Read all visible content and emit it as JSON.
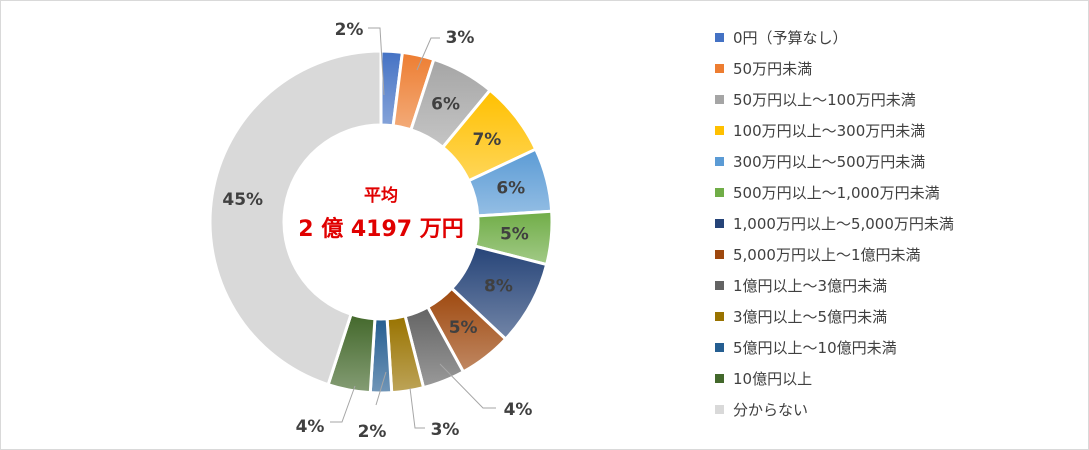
{
  "chart_data": {
    "type": "pie",
    "center_title": "平均",
    "center_value": "2 億 4197 万円",
    "legend_position": "right",
    "slices": [
      {
        "category": "0円（予算なし）",
        "value": 2,
        "label": "2%",
        "color": "#4472c4"
      },
      {
        "category": "50万円未満",
        "value": 3,
        "label": "3%",
        "color": "#ed7d31"
      },
      {
        "category": "50万円以上～100万円未満",
        "value": 6,
        "label": "6%",
        "color": "#a5a5a5"
      },
      {
        "category": "100万円以上～300万円未満",
        "value": 7,
        "label": "7%",
        "color": "#ffc000"
      },
      {
        "category": "300万円以上～500万円未満",
        "value": 6,
        "label": "6%",
        "color": "#5b9bd5"
      },
      {
        "category": "500万円以上～1,000万円未満",
        "value": 5,
        "label": "5%",
        "color": "#70ad47"
      },
      {
        "category": "1,000万円以上～5,000万円未満",
        "value": 8,
        "label": "8%",
        "color": "#264478"
      },
      {
        "category": "5,000万円以上～1億円未満",
        "value": 5,
        "label": "5%",
        "color": "#9e480e"
      },
      {
        "category": "1億円以上～3億円未満",
        "value": 4,
        "label": "4%",
        "color": "#636363"
      },
      {
        "category": "3億円以上～5億円未満",
        "value": 3,
        "label": "3%",
        "color": "#997300"
      },
      {
        "category": "5億円以上～10億円未満",
        "value": 2,
        "label": "2%",
        "color": "#255e91"
      },
      {
        "category": "10億円以上",
        "value": 4,
        "label": "4%",
        "color": "#43682b"
      },
      {
        "category": "分からない",
        "value": 45,
        "label": "45%",
        "color": "#d9d9d9"
      }
    ]
  }
}
